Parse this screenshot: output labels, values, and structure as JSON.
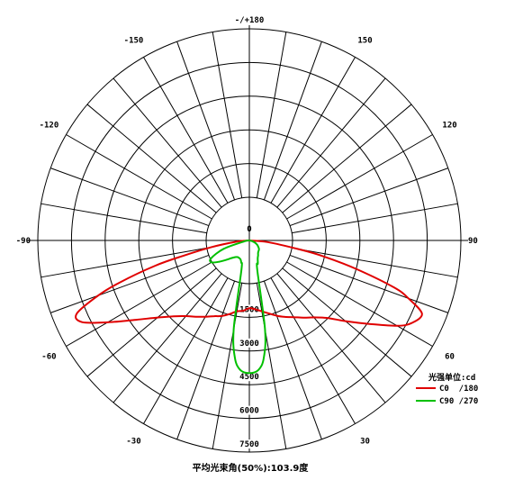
{
  "chart_data": {
    "type": "polar",
    "angle_labels": [
      {
        "deg": 180,
        "text": "-/+180"
      },
      {
        "deg": -150,
        "text": "-150"
      },
      {
        "deg": 150,
        "text": "150"
      },
      {
        "deg": -120,
        "text": "-120"
      },
      {
        "deg": 120,
        "text": "120"
      },
      {
        "deg": -90,
        "text": "-90"
      },
      {
        "deg": 90,
        "text": "90"
      },
      {
        "deg": -60,
        "text": "-60"
      },
      {
        "deg": 60,
        "text": "60"
      },
      {
        "deg": -30,
        "text": "-30"
      },
      {
        "deg": 30,
        "text": "30"
      }
    ],
    "radial_max": 7500,
    "rings": [
      1500,
      3000,
      4500,
      6000,
      7500
    ],
    "ring_labels": [
      "0",
      "1500",
      "3000",
      "4500",
      "6000",
      "7500"
    ],
    "unit_label": "光强单位:cd",
    "beam_angle_label": "平均光束角(50%):103.9度",
    "series": [
      {
        "name": "C0  /180",
        "color": "#e00000",
        "points": [
          [
            -90,
            0
          ],
          [
            -85,
            420
          ],
          [
            -80,
            1350
          ],
          [
            -77,
            2380
          ],
          [
            -75,
            3450
          ],
          [
            -72,
            4850
          ],
          [
            -70,
            5700
          ],
          [
            -67,
            6650
          ],
          [
            -64,
            6600
          ],
          [
            -60,
            5800
          ],
          [
            -55,
            4900
          ],
          [
            -50,
            4250
          ],
          [
            -45,
            3800
          ],
          [
            -40,
            3500
          ],
          [
            -35,
            3300
          ],
          [
            -30,
            3120
          ],
          [
            -25,
            2960
          ],
          [
            -20,
            2850
          ],
          [
            -15,
            2700
          ],
          [
            -10,
            2550
          ],
          [
            -5,
            2500
          ],
          [
            0,
            2400
          ],
          [
            5,
            2450
          ],
          [
            10,
            2550
          ],
          [
            15,
            2680
          ],
          [
            20,
            2840
          ],
          [
            25,
            2990
          ],
          [
            30,
            3140
          ],
          [
            35,
            3340
          ],
          [
            40,
            3560
          ],
          [
            45,
            3880
          ],
          [
            50,
            4450
          ],
          [
            55,
            5150
          ],
          [
            60,
            6050
          ],
          [
            63,
            6450
          ],
          [
            67,
            6650
          ],
          [
            70,
            6000
          ],
          [
            72,
            5400
          ],
          [
            75,
            3950
          ],
          [
            78,
            2650
          ],
          [
            80,
            1750
          ],
          [
            85,
            650
          ],
          [
            90,
            0
          ]
        ]
      },
      {
        "name": "C90 /270",
        "color": "#00c000",
        "points": [
          [
            -90,
            0
          ],
          [
            -80,
            180
          ],
          [
            -72,
            950
          ],
          [
            -65,
            1500
          ],
          [
            -60,
            1550
          ],
          [
            -55,
            1320
          ],
          [
            -50,
            1070
          ],
          [
            -45,
            880
          ],
          [
            -40,
            770
          ],
          [
            -35,
            720
          ],
          [
            -30,
            720
          ],
          [
            -25,
            740
          ],
          [
            -20,
            840
          ],
          [
            -15,
            1080
          ],
          [
            -10,
            3200
          ],
          [
            -7,
            4200
          ],
          [
            -4,
            4600
          ],
          [
            0,
            4700
          ],
          [
            4,
            4600
          ],
          [
            7,
            4200
          ],
          [
            10,
            3200
          ],
          [
            15,
            1080
          ],
          [
            20,
            880
          ],
          [
            25,
            700
          ],
          [
            30,
            620
          ],
          [
            35,
            540
          ],
          [
            40,
            500
          ],
          [
            45,
            480
          ],
          [
            50,
            440
          ],
          [
            55,
            380
          ],
          [
            60,
            330
          ],
          [
            65,
            260
          ],
          [
            70,
            180
          ],
          [
            80,
            70
          ],
          [
            90,
            0
          ]
        ]
      }
    ]
  }
}
